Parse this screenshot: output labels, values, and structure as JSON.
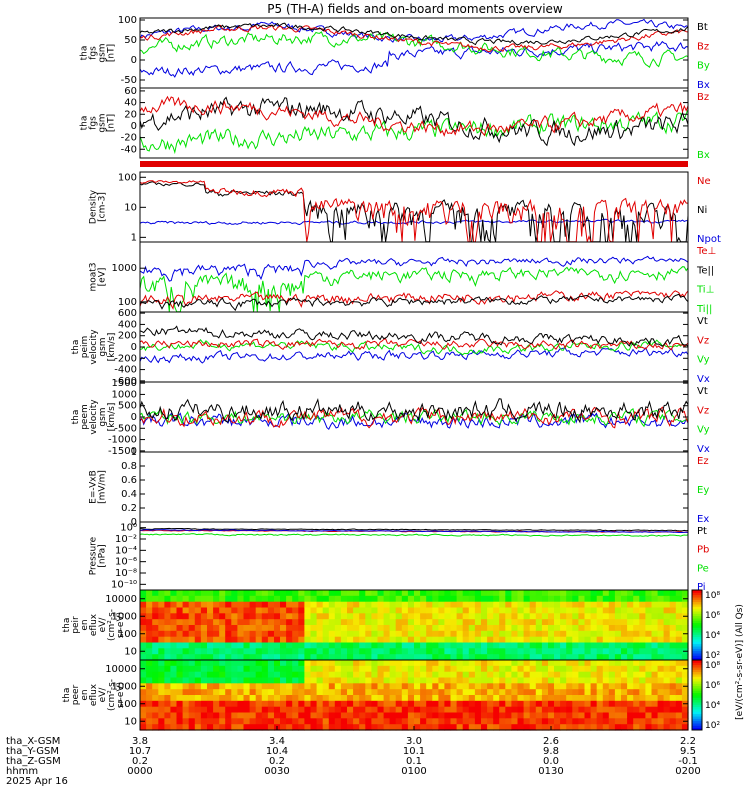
{
  "title": "P5 (TH-A) fields and on-board moments overview",
  "colors": {
    "black": "#000000",
    "red": "#e00000",
    "green": "#00e000",
    "blue": "#0000e0"
  },
  "chart_data": [
    {
      "type": "line",
      "ylabel": [
        "tha",
        "fgs",
        "gsm",
        "[nT]"
      ],
      "ylim": [
        -70,
        105
      ],
      "yticks": [
        -50,
        0,
        50,
        100
      ],
      "series": [
        {
          "name": "Bt",
          "color": "black"
        },
        {
          "name": "Bz",
          "color": "red"
        },
        {
          "name": "By",
          "color": "green"
        },
        {
          "name": "Bx",
          "color": "blue"
        }
      ]
    },
    {
      "type": "line",
      "ylabel": [
        "tha",
        "fgs",
        "gsm",
        "[nT]"
      ],
      "ylim": [
        -55,
        65
      ],
      "yticks": [
        -40,
        -20,
        0,
        20,
        40,
        60
      ],
      "series": [
        {
          "name": "Bz",
          "color": "red"
        },
        {
          "name": "Bx",
          "color": "green"
        }
      ]
    },
    {
      "type": "line",
      "ylabel": [
        "Density",
        "[cm-3]"
      ],
      "scale": "log",
      "yticks": [
        "1",
        "10",
        "100"
      ],
      "series": [
        {
          "name": "Ne",
          "color": "red"
        },
        {
          "name": "Ni",
          "color": "black"
        },
        {
          "name": "Npot",
          "color": "blue"
        }
      ]
    },
    {
      "type": "line",
      "ylabel": [
        "moat3",
        "[eV]"
      ],
      "scale": "log",
      "yticks": [
        "100",
        "1000"
      ],
      "series": [
        {
          "name": "Te⊥",
          "color": "red"
        },
        {
          "name": "Te||",
          "color": "black"
        },
        {
          "name": "Ti⊥",
          "color": "green"
        },
        {
          "name": "Ti||",
          "color": "green"
        }
      ]
    },
    {
      "type": "line",
      "ylabel": [
        "tha",
        "peim",
        "velocity",
        "gsm",
        "[km/s]"
      ],
      "ylim": [
        -620,
        620
      ],
      "yticks": [
        -600,
        -400,
        -200,
        0,
        200,
        400,
        600
      ],
      "series": [
        {
          "name": "Vt",
          "color": "black"
        },
        {
          "name": "Vz",
          "color": "red"
        },
        {
          "name": "Vy",
          "color": "green"
        },
        {
          "name": "Vx",
          "color": "blue"
        }
      ]
    },
    {
      "type": "line",
      "ylabel": [
        "tha",
        "peem",
        "velocity",
        "gsm",
        "[km/s]"
      ],
      "ylim": [
        -1550,
        1550
      ],
      "yticks": [
        -1500,
        -1000,
        -500,
        0,
        500,
        1000,
        1500
      ],
      "series": [
        {
          "name": "Vt",
          "color": "black"
        },
        {
          "name": "Vz",
          "color": "red"
        },
        {
          "name": "Vy",
          "color": "green"
        },
        {
          "name": "Vx",
          "color": "blue"
        }
      ]
    },
    {
      "type": "line",
      "ylabel": [
        "E=-VxB",
        "[mV/m]"
      ],
      "ylim": [
        0,
        1
      ],
      "yticks": [
        0.0,
        0.2,
        0.4,
        0.6,
        0.8,
        1.0
      ],
      "series": [
        {
          "name": "Ez",
          "color": "red"
        },
        {
          "name": "Ey",
          "color": "green"
        },
        {
          "name": "Ex",
          "color": "blue"
        }
      ]
    },
    {
      "type": "line",
      "ylabel": [
        "Pressure",
        "[nPa]"
      ],
      "scale": "log",
      "yticks": [
        "10⁻¹⁰",
        "10⁻⁸",
        "10⁻⁶",
        "10⁻⁴",
        "10⁻²",
        "10⁰"
      ],
      "series": [
        {
          "name": "Pt",
          "color": "black"
        },
        {
          "name": "Pb",
          "color": "red"
        },
        {
          "name": "Pe",
          "color": "green"
        },
        {
          "name": "Pi",
          "color": "blue"
        }
      ]
    },
    {
      "type": "heatmap",
      "ylabel": [
        "tha",
        "peir",
        "en",
        "eflux",
        "eV/",
        "(cm²-s-",
        "sr-eV)"
      ],
      "scale": "log",
      "yticks": [
        "10",
        "100",
        "1000",
        "10000"
      ]
    },
    {
      "type": "heatmap",
      "ylabel": [
        "tha",
        "peer",
        "en",
        "eflux",
        "eV/",
        "(cm²-s-",
        "sr-eV)"
      ],
      "scale": "log",
      "yticks": [
        "10",
        "100",
        "1000",
        "10000"
      ]
    }
  ],
  "colorbar": {
    "label": "[eV/(cm²-s-sr-eV)] (All Qs)",
    "ticks": [
      "10⁸",
      "10⁶",
      "10⁴",
      "10²",
      "10⁸",
      "10⁶",
      "10⁴",
      "10²"
    ]
  },
  "xaxis": {
    "row_labels": [
      "tha_X-GSM",
      "tha_Y-GSM",
      "tha_Z-GSM",
      "hhmm",
      "2025 Apr 16"
    ],
    "ticks": [
      {
        "x": "3.8",
        "y": "10.7",
        "z": "0.2",
        "t": "0000"
      },
      {
        "x": "3.4",
        "y": "10.4",
        "z": "0.2",
        "t": "0030"
      },
      {
        "x": "3.0",
        "y": "10.1",
        "z": "0.1",
        "t": "0100"
      },
      {
        "x": "2.6",
        "y": "9.8",
        "z": "0.0",
        "t": "0130"
      },
      {
        "x": "2.2",
        "y": "9.5",
        "z": "-0.1",
        "t": "0200"
      }
    ]
  }
}
